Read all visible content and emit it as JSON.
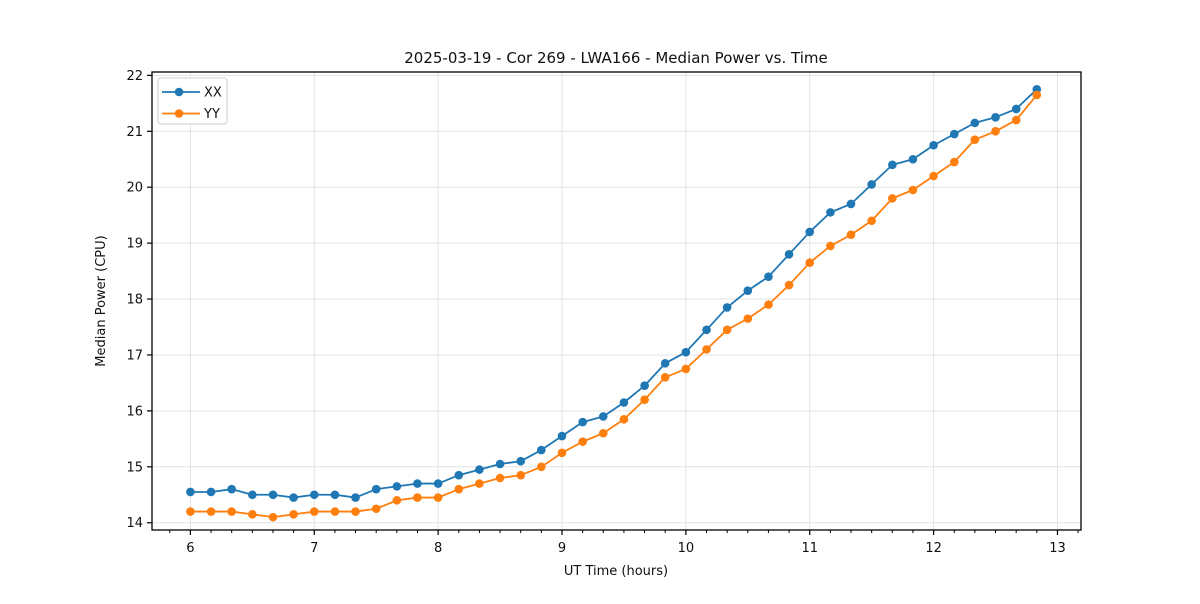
{
  "chart_data": {
    "type": "line",
    "title": "2025-03-19 - Cor 269 - LWA166 - Median Power vs. Time",
    "xlabel": "UT Time (hours)",
    "ylabel": "Median Power (CPU)",
    "xlim": [
      5.69,
      13.19
    ],
    "ylim": [
      13.87,
      22.06
    ],
    "xticks": [
      6,
      7,
      8,
      9,
      10,
      11,
      12,
      13
    ],
    "yticks": [
      14,
      15,
      16,
      17,
      18,
      19,
      20,
      21,
      22
    ],
    "x_minor_divisions": 6,
    "grid": true,
    "legend_position": "upper-left",
    "legend_labels": [
      "XX",
      "YY"
    ],
    "x": [
      6,
      6.167,
      6.333,
      6.5,
      6.667,
      6.833,
      7,
      7.167,
      7.333,
      7.5,
      7.667,
      7.833,
      8,
      8.167,
      8.333,
      8.5,
      8.667,
      8.833,
      9,
      9.167,
      9.333,
      9.5,
      9.667,
      9.833,
      10,
      10.167,
      10.333,
      10.5,
      10.667,
      10.833,
      11,
      11.167,
      11.333,
      11.5,
      11.667,
      11.833,
      12,
      12.167,
      12.333,
      12.5,
      12.667,
      12.833
    ],
    "series": [
      {
        "name": "XX",
        "color": "#1f77b4",
        "values": [
          14.55,
          14.55,
          14.6,
          14.5,
          14.5,
          14.45,
          14.5,
          14.5,
          14.45,
          14.6,
          14.65,
          14.7,
          14.7,
          14.85,
          14.95,
          15.05,
          15.1,
          15.3,
          15.55,
          15.8,
          15.9,
          16.15,
          16.45,
          16.85,
          17.05,
          17.45,
          17.85,
          18.15,
          18.4,
          18.8,
          19.2,
          19.55,
          19.7,
          20.05,
          20.4,
          20.5,
          20.75,
          20.95,
          21.15,
          21.25,
          21.4,
          21.75
        ]
      },
      {
        "name": "YY",
        "color": "#ff7f0e",
        "values": [
          14.2,
          14.2,
          14.2,
          14.15,
          14.1,
          14.15,
          14.2,
          14.2,
          14.2,
          14.25,
          14.4,
          14.45,
          14.45,
          14.6,
          14.7,
          14.8,
          14.85,
          15.0,
          15.25,
          15.45,
          15.6,
          15.85,
          16.2,
          16.6,
          16.75,
          17.1,
          17.45,
          17.65,
          17.9,
          18.25,
          18.65,
          18.95,
          19.15,
          19.4,
          19.8,
          19.95,
          20.2,
          20.45,
          20.85,
          21.0,
          21.2,
          21.65
        ]
      }
    ],
    "style": {
      "grid_color": "#e3e3e3",
      "spine_color": "#000000",
      "tick_color": "#000000",
      "legend_border_color": "#cccccc",
      "marker": "circle"
    }
  }
}
